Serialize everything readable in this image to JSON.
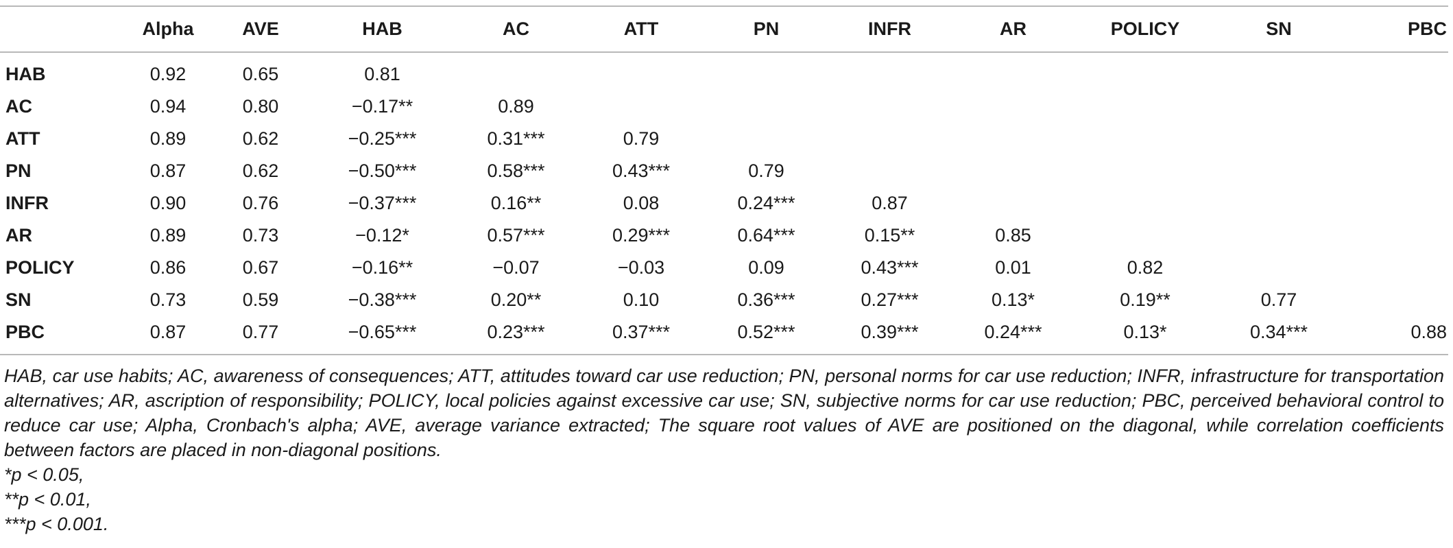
{
  "table": {
    "columns": [
      "",
      "Alpha",
      "AVE",
      "HAB",
      "AC",
      "ATT",
      "PN",
      "INFR",
      "AR",
      "POLICY",
      "SN",
      "PBC"
    ],
    "rows": [
      {
        "label": "HAB",
        "cells": [
          "0.92",
          "0.65",
          "0.81",
          "",
          "",
          "",
          "",
          "",
          "",
          "",
          ""
        ]
      },
      {
        "label": "AC",
        "cells": [
          "0.94",
          "0.80",
          "−0.17**",
          "0.89",
          "",
          "",
          "",
          "",
          "",
          "",
          ""
        ]
      },
      {
        "label": "ATT",
        "cells": [
          "0.89",
          "0.62",
          "−0.25***",
          "0.31***",
          "0.79",
          "",
          "",
          "",
          "",
          "",
          ""
        ]
      },
      {
        "label": "PN",
        "cells": [
          "0.87",
          "0.62",
          "−0.50***",
          "0.58***",
          "0.43***",
          "0.79",
          "",
          "",
          "",
          "",
          ""
        ]
      },
      {
        "label": "INFR",
        "cells": [
          "0.90",
          "0.76",
          "−0.37***",
          "0.16**",
          "0.08",
          "0.24***",
          "0.87",
          "",
          "",
          "",
          ""
        ]
      },
      {
        "label": "AR",
        "cells": [
          "0.89",
          "0.73",
          "−0.12*",
          "0.57***",
          "0.29***",
          "0.64***",
          "0.15**",
          "0.85",
          "",
          "",
          ""
        ]
      },
      {
        "label": "POLICY",
        "cells": [
          "0.86",
          "0.67",
          "−0.16**",
          "−0.07",
          "−0.03",
          "0.09",
          "0.43***",
          "0.01",
          "0.82",
          "",
          ""
        ]
      },
      {
        "label": "SN",
        "cells": [
          "0.73",
          "0.59",
          "−0.38***",
          "0.20**",
          "0.10",
          "0.36***",
          "0.27***",
          "0.13*",
          "0.19**",
          "0.77",
          ""
        ]
      },
      {
        "label": "PBC",
        "cells": [
          "0.87",
          "0.77",
          "−0.65***",
          "0.23***",
          "0.37***",
          "0.52***",
          "0.39***",
          "0.24***",
          "0.13*",
          "0.34***",
          "0.88"
        ]
      }
    ]
  },
  "footnote": {
    "note": "HAB, car use habits; AC, awareness of consequences; ATT, attitudes toward car use reduction; PN, personal norms for car use reduction; INFR, infrastructure for transportation alternatives; AR, ascription of responsibility; POLICY, local policies against excessive car use; SN, subjective norms for car use reduction; PBC, perceived behavioral control to reduce car use; Alpha, Cronbach's alpha; AVE, average variance extracted; The square root values of AVE are positioned on the diagonal, while correlation coefficients between factors are placed in non-diagonal positions.",
    "sig1": "*p < 0.05,",
    "sig2": "**p < 0.01,",
    "sig3": "***p < 0.001."
  }
}
